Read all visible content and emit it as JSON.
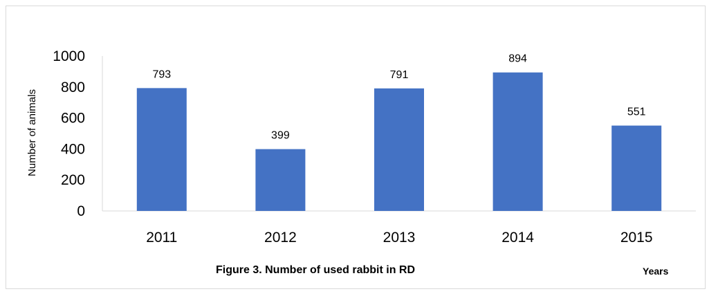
{
  "chart_data": {
    "type": "bar",
    "categories": [
      "2011",
      "2012",
      "2013",
      "2014",
      "2015"
    ],
    "values": [
      793,
      399,
      791,
      894,
      551
    ],
    "data_labels": [
      "793",
      "399",
      "791",
      "894",
      "551"
    ],
    "title": "Figure 3.  Number of used rabbit in RD",
    "xlabel": "Years",
    "ylabel": "Number of animals",
    "ylim": [
      0,
      1000
    ],
    "yticks": [
      0,
      200,
      400,
      600,
      800,
      1000
    ],
    "grid": false,
    "legend": "none",
    "bar_color": "#4472c4"
  }
}
